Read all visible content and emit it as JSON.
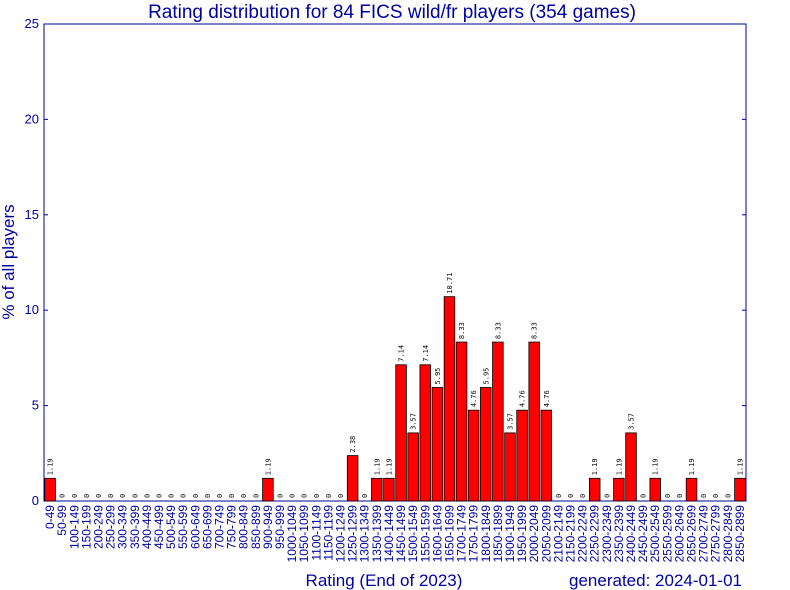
{
  "chart_data": {
    "type": "bar",
    "title": "Rating distribution for 84 FICS wild/fr players (354 games)",
    "xlabel": "Rating (End of 2023)",
    "ylabel": "% of all players",
    "footer": "generated: 2024-01-01",
    "ylim": [
      0,
      25
    ],
    "yticks": [
      0,
      5,
      10,
      15,
      20,
      25
    ],
    "grid": false,
    "legend": "none",
    "bar_color": "#ff0000",
    "bar_edge_color": "#000000",
    "text_color": "#0000a0",
    "categories": [
      "0-49",
      "50-99",
      "100-149",
      "150-199",
      "200-249",
      "250-299",
      "300-349",
      "350-399",
      "400-449",
      "450-499",
      "500-549",
      "550-599",
      "600-649",
      "650-699",
      "700-749",
      "750-799",
      "800-849",
      "850-899",
      "900-949",
      "950-999",
      "1000-1049",
      "1050-1099",
      "1100-1149",
      "1150-1199",
      "1200-1249",
      "1250-1299",
      "1300-1349",
      "1350-1399",
      "1400-1449",
      "1450-1499",
      "1500-1549",
      "1550-1599",
      "1600-1649",
      "1650-1699",
      "1700-1749",
      "1750-1799",
      "1800-1849",
      "1850-1899",
      "1900-1949",
      "1950-1999",
      "2000-2049",
      "2050-2099",
      "2100-2149",
      "2150-2199",
      "2200-2249",
      "2250-2299",
      "2300-2349",
      "2350-2399",
      "2400-2449",
      "2450-2499",
      "2500-2549",
      "2550-2599",
      "2600-2649",
      "2650-2699",
      "2700-2749",
      "2750-2799",
      "2800-2849",
      "2850-2899"
    ],
    "values": [
      1.19,
      0,
      0,
      0,
      0,
      0,
      0,
      0,
      0,
      0,
      0,
      0,
      0,
      0,
      0,
      0,
      0,
      0,
      1.19,
      0,
      0,
      0,
      0,
      0,
      0,
      2.38,
      0,
      1.19,
      1.19,
      7.14,
      3.57,
      7.14,
      5.95,
      10.71,
      8.33,
      4.76,
      5.95,
      8.33,
      3.57,
      4.76,
      8.33,
      4.76,
      0,
      0,
      0,
      1.19,
      0,
      1.19,
      3.57,
      0,
      1.19,
      0,
      0,
      1.19,
      0,
      0,
      0,
      1.19
    ],
    "data_labels": [
      "1.19",
      "0",
      "0",
      "0",
      "0",
      "0",
      "0",
      "0",
      "0",
      "0",
      "0",
      "0",
      "0",
      "0",
      "0",
      "0",
      "0",
      "0",
      "1.19",
      "0",
      "0",
      "0",
      "0",
      "0",
      "0",
      "2.38",
      "0",
      "1.19",
      "1.19",
      "7.14",
      "3.57",
      "7.14",
      "5.95",
      "10.71",
      "8.33",
      "4.76",
      "5.95",
      "8.33",
      "3.57",
      "4.76",
      "8.33",
      "4.76",
      "0",
      "0",
      "0",
      "1.19",
      "0",
      "1.19",
      "3.57",
      "0",
      "1.19",
      "0",
      "0",
      "1.19",
      "0",
      "0",
      "0",
      "1.19"
    ]
  }
}
